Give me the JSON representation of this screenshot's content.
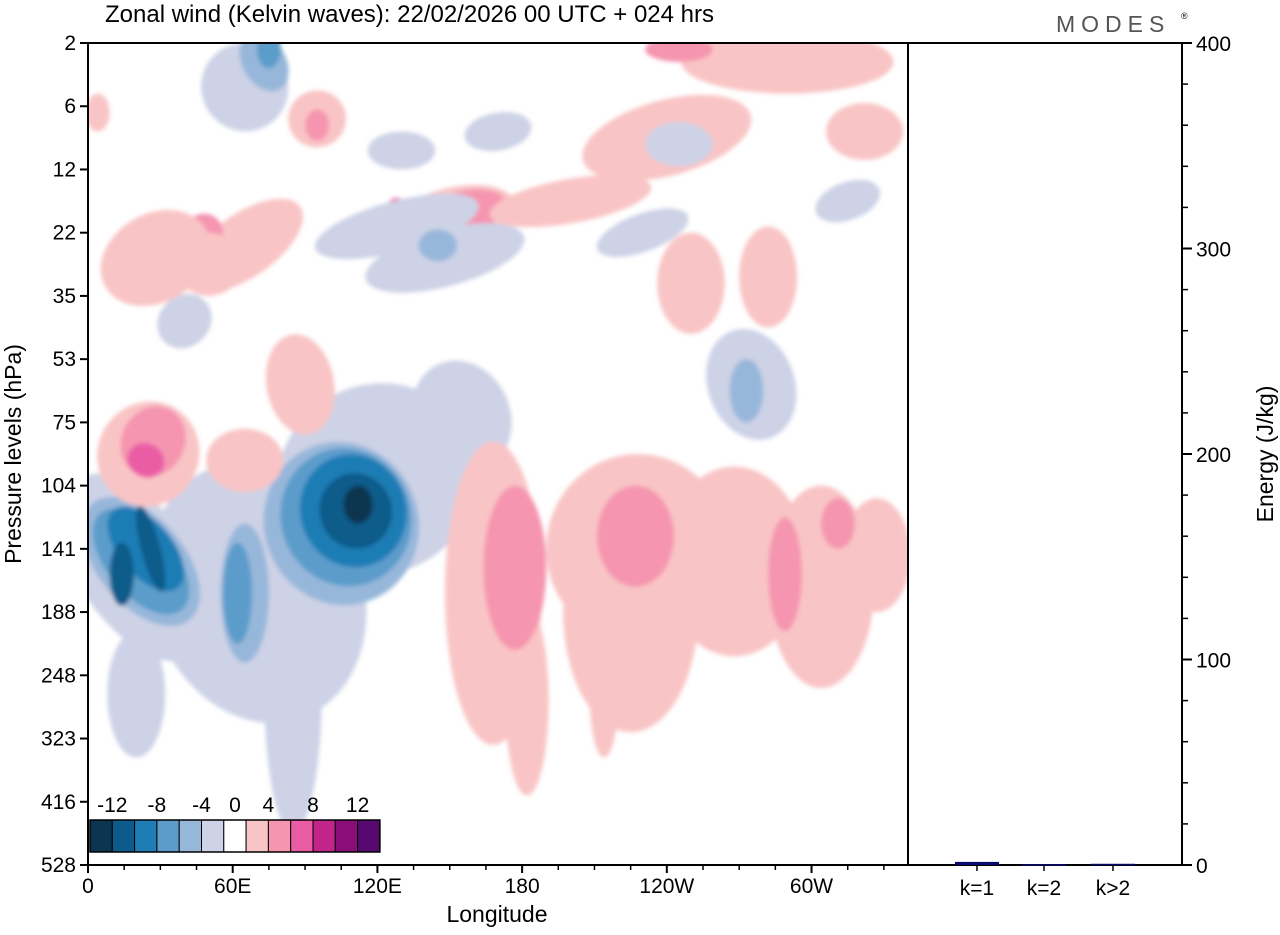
{
  "header": {
    "title": "Zonal wind (Kelvin waves):  22/02/2026  00 UTC  + 024 hrs",
    "logo": "MODES",
    "logo_mark": "®"
  },
  "chart_data": [
    {
      "type": "heatmap",
      "title": "Zonal wind (Kelvin waves):  22/02/2026  00 UTC  + 024 hrs",
      "xlabel": "Longitude",
      "ylabel": "Pressure levels (hPa)",
      "x_ticks": [
        {
          "lon": 0,
          "label": "0"
        },
        {
          "lon": 60,
          "label": "60E"
        },
        {
          "lon": 120,
          "label": "120E"
        },
        {
          "lon": 180,
          "label": "180"
        },
        {
          "lon": 240,
          "label": "120W"
        },
        {
          "lon": 300,
          "label": "60W"
        }
      ],
      "xlim": [
        0,
        340
      ],
      "y_levels_hpa": [
        "2",
        "6",
        "12",
        "22",
        "35",
        "53",
        "75",
        "104",
        "141",
        "188",
        "248",
        "323",
        "416",
        "528"
      ],
      "units": "m/s",
      "colorbar": {
        "labels": [
          "-12",
          "-8",
          "-4",
          "0",
          "4",
          "8",
          "12"
        ],
        "bins": [
          -14,
          -12,
          -10,
          -8,
          -6,
          -4,
          -2,
          2,
          4,
          6,
          8,
          10,
          12,
          14
        ],
        "colors": [
          "#0b3550",
          "#0c5b8a",
          "#1f7db5",
          "#5b9ccb",
          "#97b7da",
          "#cdd2e6",
          "#ffffff",
          "#f9c4c5",
          "#f595b0",
          "#ea5da5",
          "#c2258a",
          "#8a0f78",
          "#560a70"
        ]
      },
      "features": [
        {
          "name": "negative core 120E",
          "lon": 110,
          "level": "104",
          "value": -14
        },
        {
          "name": "negative core 20E",
          "lon": 25,
          "level": "141",
          "value": -12
        },
        {
          "name": "negative band 20E-140E",
          "lon": 90,
          "level": "141",
          "value": -6
        },
        {
          "name": "negative cell 60W upper",
          "lon": 272,
          "level": "75",
          "value": -6
        },
        {
          "name": "negative cell 110E upper",
          "lon": 150,
          "level": "22",
          "value": -6
        },
        {
          "name": "negative cell 10E upper",
          "lon": 75,
          "level": "2",
          "value": -8
        },
        {
          "name": "positive band 160E-340E",
          "lon": 250,
          "level": "141",
          "value": 4
        },
        {
          "name": "positive cell 180",
          "lon": 178,
          "level": "104",
          "value": 6
        },
        {
          "name": "positive cell 120W",
          "lon": 225,
          "level": "104",
          "value": 6
        },
        {
          "name": "positive cell 60W",
          "lon": 290,
          "level": "141",
          "value": 6
        },
        {
          "name": "positive cell 25E",
          "lon": 25,
          "level": "75",
          "value": 8
        },
        {
          "name": "positive cell 125E upper",
          "lon": 125,
          "level": "22",
          "value": 8
        }
      ]
    },
    {
      "type": "bar",
      "categories": [
        "k=1",
        "k=2",
        "k>2"
      ],
      "values": [
        1.5,
        0.4,
        0.6
      ],
      "ylabel": "Energy (J/kg)",
      "ylim": [
        0,
        400
      ],
      "y_ticks": [
        "0",
        "100",
        "200",
        "300",
        "400"
      ],
      "bar_color": "#0a0a6e"
    }
  ]
}
